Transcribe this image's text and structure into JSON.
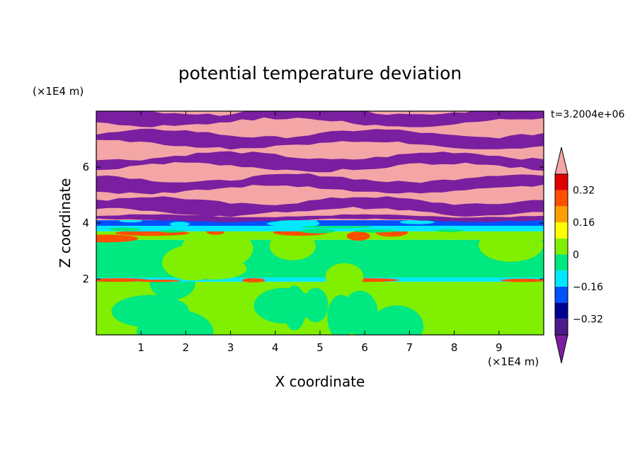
{
  "chart_data": {
    "type": "heatmap",
    "title": "potential temperature deviation",
    "xlabel": "X coordinate",
    "ylabel": "Z coordinate",
    "x_unit": "(×1E4 m)",
    "y_unit": "(×1E4 m)",
    "time_label": "t=3.2004e+06",
    "xlim": [
      0,
      10
    ],
    "ylim": [
      0,
      8
    ],
    "x_ticks": [
      1,
      2,
      3,
      4,
      5,
      6,
      7,
      8,
      9
    ],
    "y_ticks": [
      2,
      4,
      6
    ],
    "colorbar": {
      "levels": [
        -0.4,
        -0.32,
        -0.24,
        -0.16,
        -0.08,
        0,
        0.08,
        0.16,
        0.24,
        0.32,
        0.4
      ],
      "tick_labels": [
        "0.32",
        "0.16",
        "0",
        "−0.16",
        "−0.32"
      ],
      "tick_values": [
        0.32,
        0.16,
        0,
        -0.16,
        -0.32
      ],
      "under_color": "#7a1fa0",
      "over_color": "#f4a6a6",
      "colors": [
        "#4b1a8c",
        "#000090",
        "#0050ff",
        "#00e8ff",
        "#00e880",
        "#80f000",
        "#ffff00",
        "#ffa000",
        "#ff5000",
        "#e00000"
      ]
    },
    "layers": [
      {
        "z_range": [
          0,
          1.9
        ],
        "base": 0.04,
        "patch": -0.04
      },
      {
        "z_range": [
          1.9,
          2.05
        ],
        "base": -0.1,
        "patch": 0.3
      },
      {
        "z_range": [
          2.05,
          3.4
        ],
        "base": -0.04,
        "patch": 0.04
      },
      {
        "z_range": [
          3.4,
          3.7
        ],
        "base": 0.04,
        "patch": 0.25
      },
      {
        "z_range": [
          3.7,
          3.9
        ],
        "base": -0.15,
        "patch": -0.04
      },
      {
        "z_range": [
          3.9,
          4.1
        ],
        "base": -0.22,
        "patch": -0.15
      },
      {
        "z_range": [
          4.1,
          4.4
        ],
        "base": 0.45,
        "patch": -0.45
      },
      {
        "z_range": [
          4.4,
          8
        ],
        "base": 0.45,
        "patch": -0.45
      }
    ]
  }
}
